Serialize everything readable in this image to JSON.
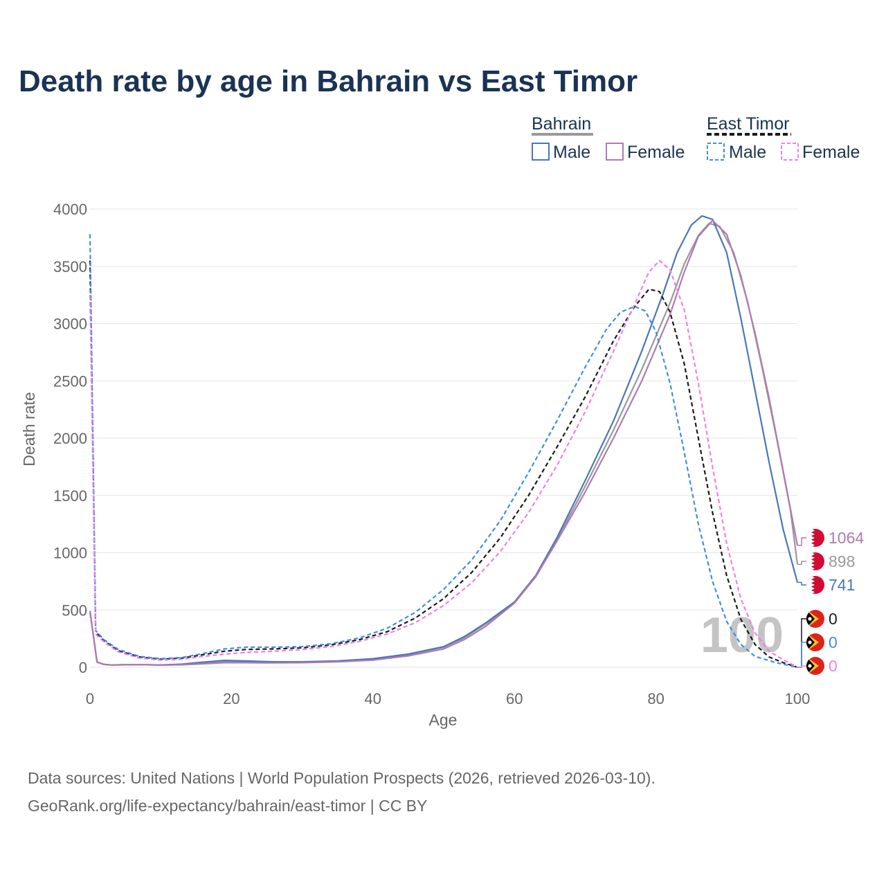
{
  "colors": {
    "bahrain_male": "#4a76b8",
    "bahrain_female": "#b07ab0",
    "bahrain_total": "#999999",
    "timor_male": "#3d8ee6",
    "timor_female": "#f07ee8",
    "timor_total": "#1a1a1a",
    "bahrain_flag": "#d00c33",
    "timor_flag_red": "#dc241f",
    "timor_flag_yellow": "#ffc726",
    "timor_flag_black": "#000000",
    "title": "#1a3354",
    "grid": "#e6e6e6",
    "muted": "#666666",
    "watermark": "#c4c4c4"
  },
  "icons": {
    "bahrain_flag": "bahrain-flag-icon",
    "timor_flag": "east-timor-flag-icon"
  },
  "chart_data": {
    "type": "line",
    "title": "Death rate by age in Bahrain vs East Timor",
    "xlabel": "Age",
    "ylabel": "Death rate",
    "xlim": [
      0,
      100
    ],
    "ylim": [
      0,
      4000
    ],
    "xticks": [
      0,
      20,
      40,
      60,
      80,
      100
    ],
    "yticks": [
      0,
      500,
      1000,
      1500,
      2000,
      2500,
      3000,
      3500,
      4000
    ],
    "grid": true,
    "legend": {
      "placement": "top-right",
      "groups": [
        {
          "name": "Bahrain",
          "items": [
            "Male",
            "Female"
          ]
        },
        {
          "name": "East Timor",
          "items": [
            "Male",
            "Female"
          ]
        }
      ]
    },
    "highlight_age": "100",
    "series": [
      {
        "name": "Bahrain Total",
        "country": "Bahrain",
        "sex": "Total",
        "dashed": false,
        "end_label": "898",
        "points": [
          [
            0,
            490
          ],
          [
            1,
            45
          ],
          [
            2,
            25
          ],
          [
            3,
            20
          ],
          [
            5,
            22
          ],
          [
            8,
            22
          ],
          [
            10,
            20
          ],
          [
            13,
            25
          ],
          [
            16,
            40
          ],
          [
            19,
            50
          ],
          [
            22,
            50
          ],
          [
            26,
            45
          ],
          [
            30,
            45
          ],
          [
            35,
            52
          ],
          [
            40,
            70
          ],
          [
            45,
            110
          ],
          [
            50,
            175
          ],
          [
            53,
            260
          ],
          [
            56,
            380
          ],
          [
            60,
            560
          ],
          [
            63,
            790
          ],
          [
            66,
            1110
          ],
          [
            70,
            1580
          ],
          [
            74,
            2070
          ],
          [
            78,
            2600
          ],
          [
            82,
            3180
          ],
          [
            84,
            3520
          ],
          [
            86,
            3770
          ],
          [
            87.5,
            3875
          ],
          [
            89,
            3850
          ],
          [
            91,
            3620
          ],
          [
            93,
            3180
          ],
          [
            95,
            2620
          ],
          [
            97,
            2020
          ],
          [
            99,
            1380
          ],
          [
            100,
            898
          ]
        ]
      },
      {
        "name": "Bahrain Male",
        "country": "Bahrain",
        "sex": "Male",
        "dashed": false,
        "end_label": "741",
        "points": [
          [
            0,
            490
          ],
          [
            1,
            45
          ],
          [
            2,
            25
          ],
          [
            3,
            20
          ],
          [
            5,
            22
          ],
          [
            8,
            22
          ],
          [
            10,
            20
          ],
          [
            13,
            27
          ],
          [
            16,
            45
          ],
          [
            19,
            60
          ],
          [
            22,
            55
          ],
          [
            26,
            48
          ],
          [
            30,
            48
          ],
          [
            35,
            55
          ],
          [
            40,
            75
          ],
          [
            45,
            115
          ],
          [
            50,
            180
          ],
          [
            53,
            270
          ],
          [
            56,
            390
          ],
          [
            60,
            570
          ],
          [
            63,
            800
          ],
          [
            66,
            1130
          ],
          [
            70,
            1630
          ],
          [
            74,
            2150
          ],
          [
            78,
            2760
          ],
          [
            81,
            3260
          ],
          [
            83,
            3620
          ],
          [
            85,
            3860
          ],
          [
            86.5,
            3940
          ],
          [
            88,
            3910
          ],
          [
            90,
            3620
          ],
          [
            92,
            3050
          ],
          [
            94,
            2420
          ],
          [
            96,
            1790
          ],
          [
            98,
            1200
          ],
          [
            100,
            741
          ]
        ]
      },
      {
        "name": "Bahrain Female",
        "country": "Bahrain",
        "sex": "Female",
        "dashed": false,
        "end_label": "1064",
        "points": [
          [
            0,
            490
          ],
          [
            1,
            45
          ],
          [
            2,
            25
          ],
          [
            3,
            20
          ],
          [
            5,
            22
          ],
          [
            8,
            22
          ],
          [
            10,
            18
          ],
          [
            13,
            22
          ],
          [
            16,
            30
          ],
          [
            19,
            40
          ],
          [
            22,
            40
          ],
          [
            26,
            38
          ],
          [
            30,
            40
          ],
          [
            35,
            48
          ],
          [
            40,
            62
          ],
          [
            45,
            100
          ],
          [
            50,
            160
          ],
          [
            53,
            245
          ],
          [
            56,
            360
          ],
          [
            60,
            560
          ],
          [
            63,
            790
          ],
          [
            66,
            1100
          ],
          [
            70,
            1530
          ],
          [
            74,
            2000
          ],
          [
            78,
            2500
          ],
          [
            82,
            3080
          ],
          [
            84,
            3450
          ],
          [
            86,
            3760
          ],
          [
            88,
            3900
          ],
          [
            90,
            3780
          ],
          [
            92,
            3420
          ],
          [
            94,
            2920
          ],
          [
            96,
            2350
          ],
          [
            98,
            1710
          ],
          [
            100,
            1064
          ]
        ]
      },
      {
        "name": "East Timor Total",
        "country": "East Timor",
        "sex": "Total",
        "dashed": true,
        "end_label": "0",
        "points": [
          [
            0,
            3550
          ],
          [
            0.8,
            310
          ],
          [
            2,
            230
          ],
          [
            4,
            145
          ],
          [
            7,
            90
          ],
          [
            10,
            70
          ],
          [
            13,
            80
          ],
          [
            16,
            110
          ],
          [
            19,
            140
          ],
          [
            22,
            155
          ],
          [
            26,
            160
          ],
          [
            30,
            170
          ],
          [
            34,
            195
          ],
          [
            38,
            240
          ],
          [
            42,
            310
          ],
          [
            46,
            430
          ],
          [
            50,
            600
          ],
          [
            54,
            830
          ],
          [
            58,
            1130
          ],
          [
            62,
            1500
          ],
          [
            66,
            1920
          ],
          [
            70,
            2360
          ],
          [
            74,
            2850
          ],
          [
            77,
            3150
          ],
          [
            79,
            3300
          ],
          [
            80.5,
            3280
          ],
          [
            82,
            3100
          ],
          [
            84,
            2650
          ],
          [
            86,
            2000
          ],
          [
            88,
            1350
          ],
          [
            90,
            800
          ],
          [
            92,
            420
          ],
          [
            94,
            200
          ],
          [
            96,
            90
          ],
          [
            98,
            40
          ],
          [
            100,
            0
          ]
        ]
      },
      {
        "name": "East Timor Male",
        "country": "East Timor",
        "sex": "Male",
        "dashed": true,
        "end_label": "0",
        "points": [
          [
            0,
            3780
          ],
          [
            0.8,
            320
          ],
          [
            2,
            240
          ],
          [
            4,
            155
          ],
          [
            7,
            95
          ],
          [
            10,
            75
          ],
          [
            13,
            85
          ],
          [
            16,
            120
          ],
          [
            19,
            160
          ],
          [
            22,
            175
          ],
          [
            26,
            175
          ],
          [
            30,
            180
          ],
          [
            34,
            205
          ],
          [
            38,
            255
          ],
          [
            42,
            340
          ],
          [
            46,
            480
          ],
          [
            50,
            680
          ],
          [
            54,
            940
          ],
          [
            58,
            1280
          ],
          [
            62,
            1700
          ],
          [
            66,
            2150
          ],
          [
            70,
            2620
          ],
          [
            73,
            2950
          ],
          [
            75,
            3100
          ],
          [
            77,
            3150
          ],
          [
            78.5,
            3110
          ],
          [
            80,
            2930
          ],
          [
            82,
            2480
          ],
          [
            84,
            1880
          ],
          [
            86,
            1250
          ],
          [
            88,
            750
          ],
          [
            90,
            400
          ],
          [
            92,
            200
          ],
          [
            94,
            95
          ],
          [
            97,
            40
          ],
          [
            100,
            0
          ]
        ]
      },
      {
        "name": "East Timor Female",
        "country": "East Timor",
        "sex": "Female",
        "dashed": true,
        "end_label": "0",
        "points": [
          [
            0,
            3250
          ],
          [
            0.8,
            290
          ],
          [
            2,
            220
          ],
          [
            4,
            135
          ],
          [
            7,
            80
          ],
          [
            10,
            62
          ],
          [
            13,
            70
          ],
          [
            16,
            95
          ],
          [
            19,
            115
          ],
          [
            22,
            130
          ],
          [
            26,
            140
          ],
          [
            30,
            155
          ],
          [
            34,
            180
          ],
          [
            38,
            225
          ],
          [
            42,
            290
          ],
          [
            46,
            390
          ],
          [
            50,
            540
          ],
          [
            54,
            740
          ],
          [
            58,
            1010
          ],
          [
            62,
            1350
          ],
          [
            66,
            1760
          ],
          [
            70,
            2230
          ],
          [
            74,
            2760
          ],
          [
            77,
            3170
          ],
          [
            79,
            3450
          ],
          [
            80.5,
            3550
          ],
          [
            82,
            3470
          ],
          [
            84,
            3120
          ],
          [
            86,
            2480
          ],
          [
            88,
            1750
          ],
          [
            90,
            1080
          ],
          [
            92,
            600
          ],
          [
            94,
            300
          ],
          [
            96,
            140
          ],
          [
            98,
            65
          ],
          [
            100,
            0
          ]
        ]
      }
    ]
  },
  "sources": {
    "line1": "Data sources: United Nations | World Population Prospects (2026, retrieved 2026-03-10).",
    "line2": "GeoRank.org/life-expectancy/bahrain/east-timor | CC BY"
  }
}
